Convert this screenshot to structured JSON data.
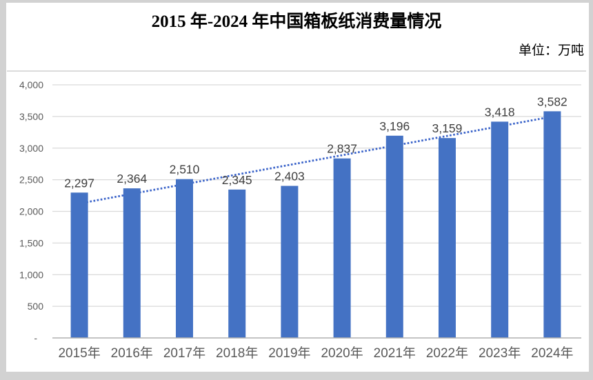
{
  "title": "2015 年-2024 年中国箱板纸消费量情况",
  "unit_label": "单位：万吨",
  "chart_data": {
    "type": "bar",
    "title": "2015 年-2024 年中国箱板纸消费量情况",
    "unit": "万吨",
    "categories": [
      "2015年",
      "2016年",
      "2017年",
      "2018年",
      "2019年",
      "2020年",
      "2021年",
      "2022年",
      "2023年",
      "2024年"
    ],
    "values": [
      2297,
      2364,
      2510,
      2345,
      2403,
      2837,
      3196,
      3159,
      3418,
      3582
    ],
    "value_labels": [
      "2,297",
      "2,364",
      "2,510",
      "2,345",
      "2,403",
      "2,837",
      "3,196",
      "3,159",
      "3,418",
      "3,582"
    ],
    "ylim": [
      0,
      4000
    ],
    "ytick_step": 500,
    "ytick_labels": [
      "-",
      "500",
      "1,000",
      "1,500",
      "2,000",
      "2,500",
      "3,000",
      "3,500",
      "4,000"
    ],
    "grid": true,
    "legend": false,
    "trendline": {
      "type": "linear",
      "style": "dotted"
    },
    "colors": {
      "bar": "#4472C4",
      "trendline": "#3A63C9",
      "gridline": "#D9D9D9",
      "axis_line": "#AFAFAF",
      "tick_label": "#595959",
      "data_label": "#3F3F3F"
    }
  }
}
